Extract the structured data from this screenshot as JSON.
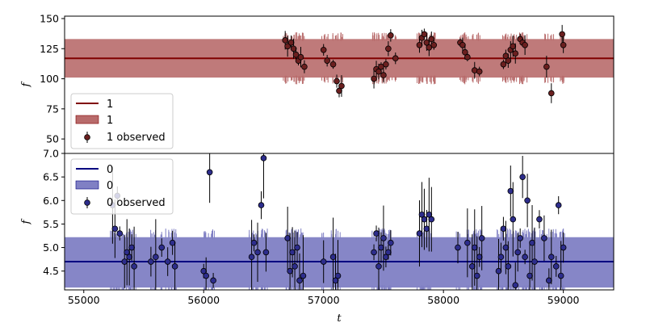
{
  "chart_data": [
    {
      "type": "line",
      "panel": "top",
      "ylabel": "f",
      "xlabel": "",
      "xlim": [
        54840,
        59420
      ],
      "ylim": [
        38,
        152
      ],
      "yticks": [
        50,
        75,
        100,
        125,
        150
      ],
      "grid": false,
      "legend_position": "lower-left",
      "colors": {
        "line": "#800000",
        "band": "#b86b6b",
        "marker": "#6b1f1f"
      },
      "legend": [
        "1",
        "1",
        "1 observed"
      ],
      "model": {
        "mean": 117,
        "band": [
          101,
          133
        ]
      },
      "series": [
        {
          "name": "1 observed",
          "type": "scatter",
          "x": [
            56680,
            56700,
            56730,
            56750,
            56770,
            56790,
            56810,
            56840,
            57000,
            57030,
            57080,
            57110,
            57130,
            57150,
            57420,
            57440,
            57460,
            57480,
            57500,
            57520,
            57540,
            57560,
            57600,
            57800,
            57820,
            57840,
            57860,
            57880,
            57900,
            57920,
            58140,
            58160,
            58180,
            58200,
            58260,
            58300,
            58500,
            58520,
            58540,
            58560,
            58580,
            58600,
            58640,
            58660,
            58680,
            58860,
            58900,
            58990,
            59000
          ],
          "y": [
            132,
            127,
            130,
            125,
            120,
            115,
            118,
            110,
            124,
            115,
            112,
            98,
            90,
            94,
            100,
            108,
            106,
            110,
            103,
            112,
            125,
            136,
            117,
            128,
            134,
            137,
            130,
            126,
            133,
            128,
            130,
            128,
            122,
            118,
            107,
            106,
            112,
            119,
            115,
            124,
            127,
            121,
            133,
            130,
            128,
            110,
            88,
            137,
            128
          ]
        }
      ]
    },
    {
      "type": "line",
      "panel": "bottom",
      "ylabel": "f",
      "xlabel": "t",
      "xlim": [
        54840,
        59420
      ],
      "ylim": [
        4.1,
        7.0
      ],
      "yticks": [
        4.5,
        5.0,
        5.5,
        6.0,
        6.5,
        7.0
      ],
      "xticks": [
        55000,
        56000,
        57000,
        58000,
        59000
      ],
      "grid": false,
      "legend_position": "top-left",
      "colors": {
        "line": "#000080",
        "band": "#8080c4",
        "marker": "#2d2d8c"
      },
      "legend": [
        "0",
        "0",
        "0 observed"
      ],
      "model": {
        "mean": 4.7,
        "band": [
          4.15,
          5.22
        ]
      },
      "series": [
        {
          "name": "0 observed",
          "type": "scatter",
          "x": [
            55240,
            55260,
            55280,
            55300,
            55340,
            55360,
            55380,
            55400,
            55420,
            55560,
            55600,
            55650,
            55700,
            55740,
            55760,
            56000,
            56020,
            56050,
            56080,
            56400,
            56420,
            56450,
            56480,
            56500,
            56520,
            56700,
            56720,
            56740,
            56760,
            56780,
            56800,
            56830,
            57000,
            57080,
            57100,
            57120,
            57420,
            57440,
            57460,
            57480,
            57500,
            57520,
            57540,
            57560,
            57800,
            57820,
            57840,
            57860,
            57880,
            57900,
            58120,
            58200,
            58240,
            58260,
            58280,
            58300,
            58320,
            58460,
            58480,
            58500,
            58520,
            58540,
            58560,
            58580,
            58600,
            58620,
            58640,
            58660,
            58680,
            58700,
            58720,
            58740,
            58760,
            58800,
            58840,
            58880,
            58900,
            58940,
            58960,
            58980,
            59000
          ],
          "y": [
            5.9,
            5.4,
            6.1,
            5.3,
            4.7,
            4.9,
            4.8,
            5.0,
            4.6,
            4.7,
            4.8,
            5.0,
            4.7,
            5.1,
            4.6,
            4.5,
            4.4,
            6.6,
            4.3,
            4.8,
            5.1,
            4.9,
            5.9,
            6.9,
            4.9,
            5.2,
            4.5,
            4.9,
            4.6,
            5.0,
            4.3,
            4.4,
            4.7,
            4.8,
            4.3,
            4.4,
            4.9,
            5.3,
            4.6,
            5.0,
            5.2,
            4.8,
            4.9,
            5.1,
            5.3,
            5.7,
            5.6,
            5.4,
            5.7,
            5.6,
            5.0,
            5.1,
            4.6,
            5.0,
            4.4,
            4.8,
            5.2,
            4.5,
            4.8,
            5.4,
            5.0,
            4.6,
            6.2,
            5.6,
            4.2,
            4.9,
            5.2,
            6.5,
            4.8,
            6.0,
            4.4,
            5.1,
            4.7,
            5.6,
            5.2,
            4.3,
            4.8,
            4.6,
            5.9,
            4.4,
            5.0
          ]
        }
      ]
    }
  ]
}
